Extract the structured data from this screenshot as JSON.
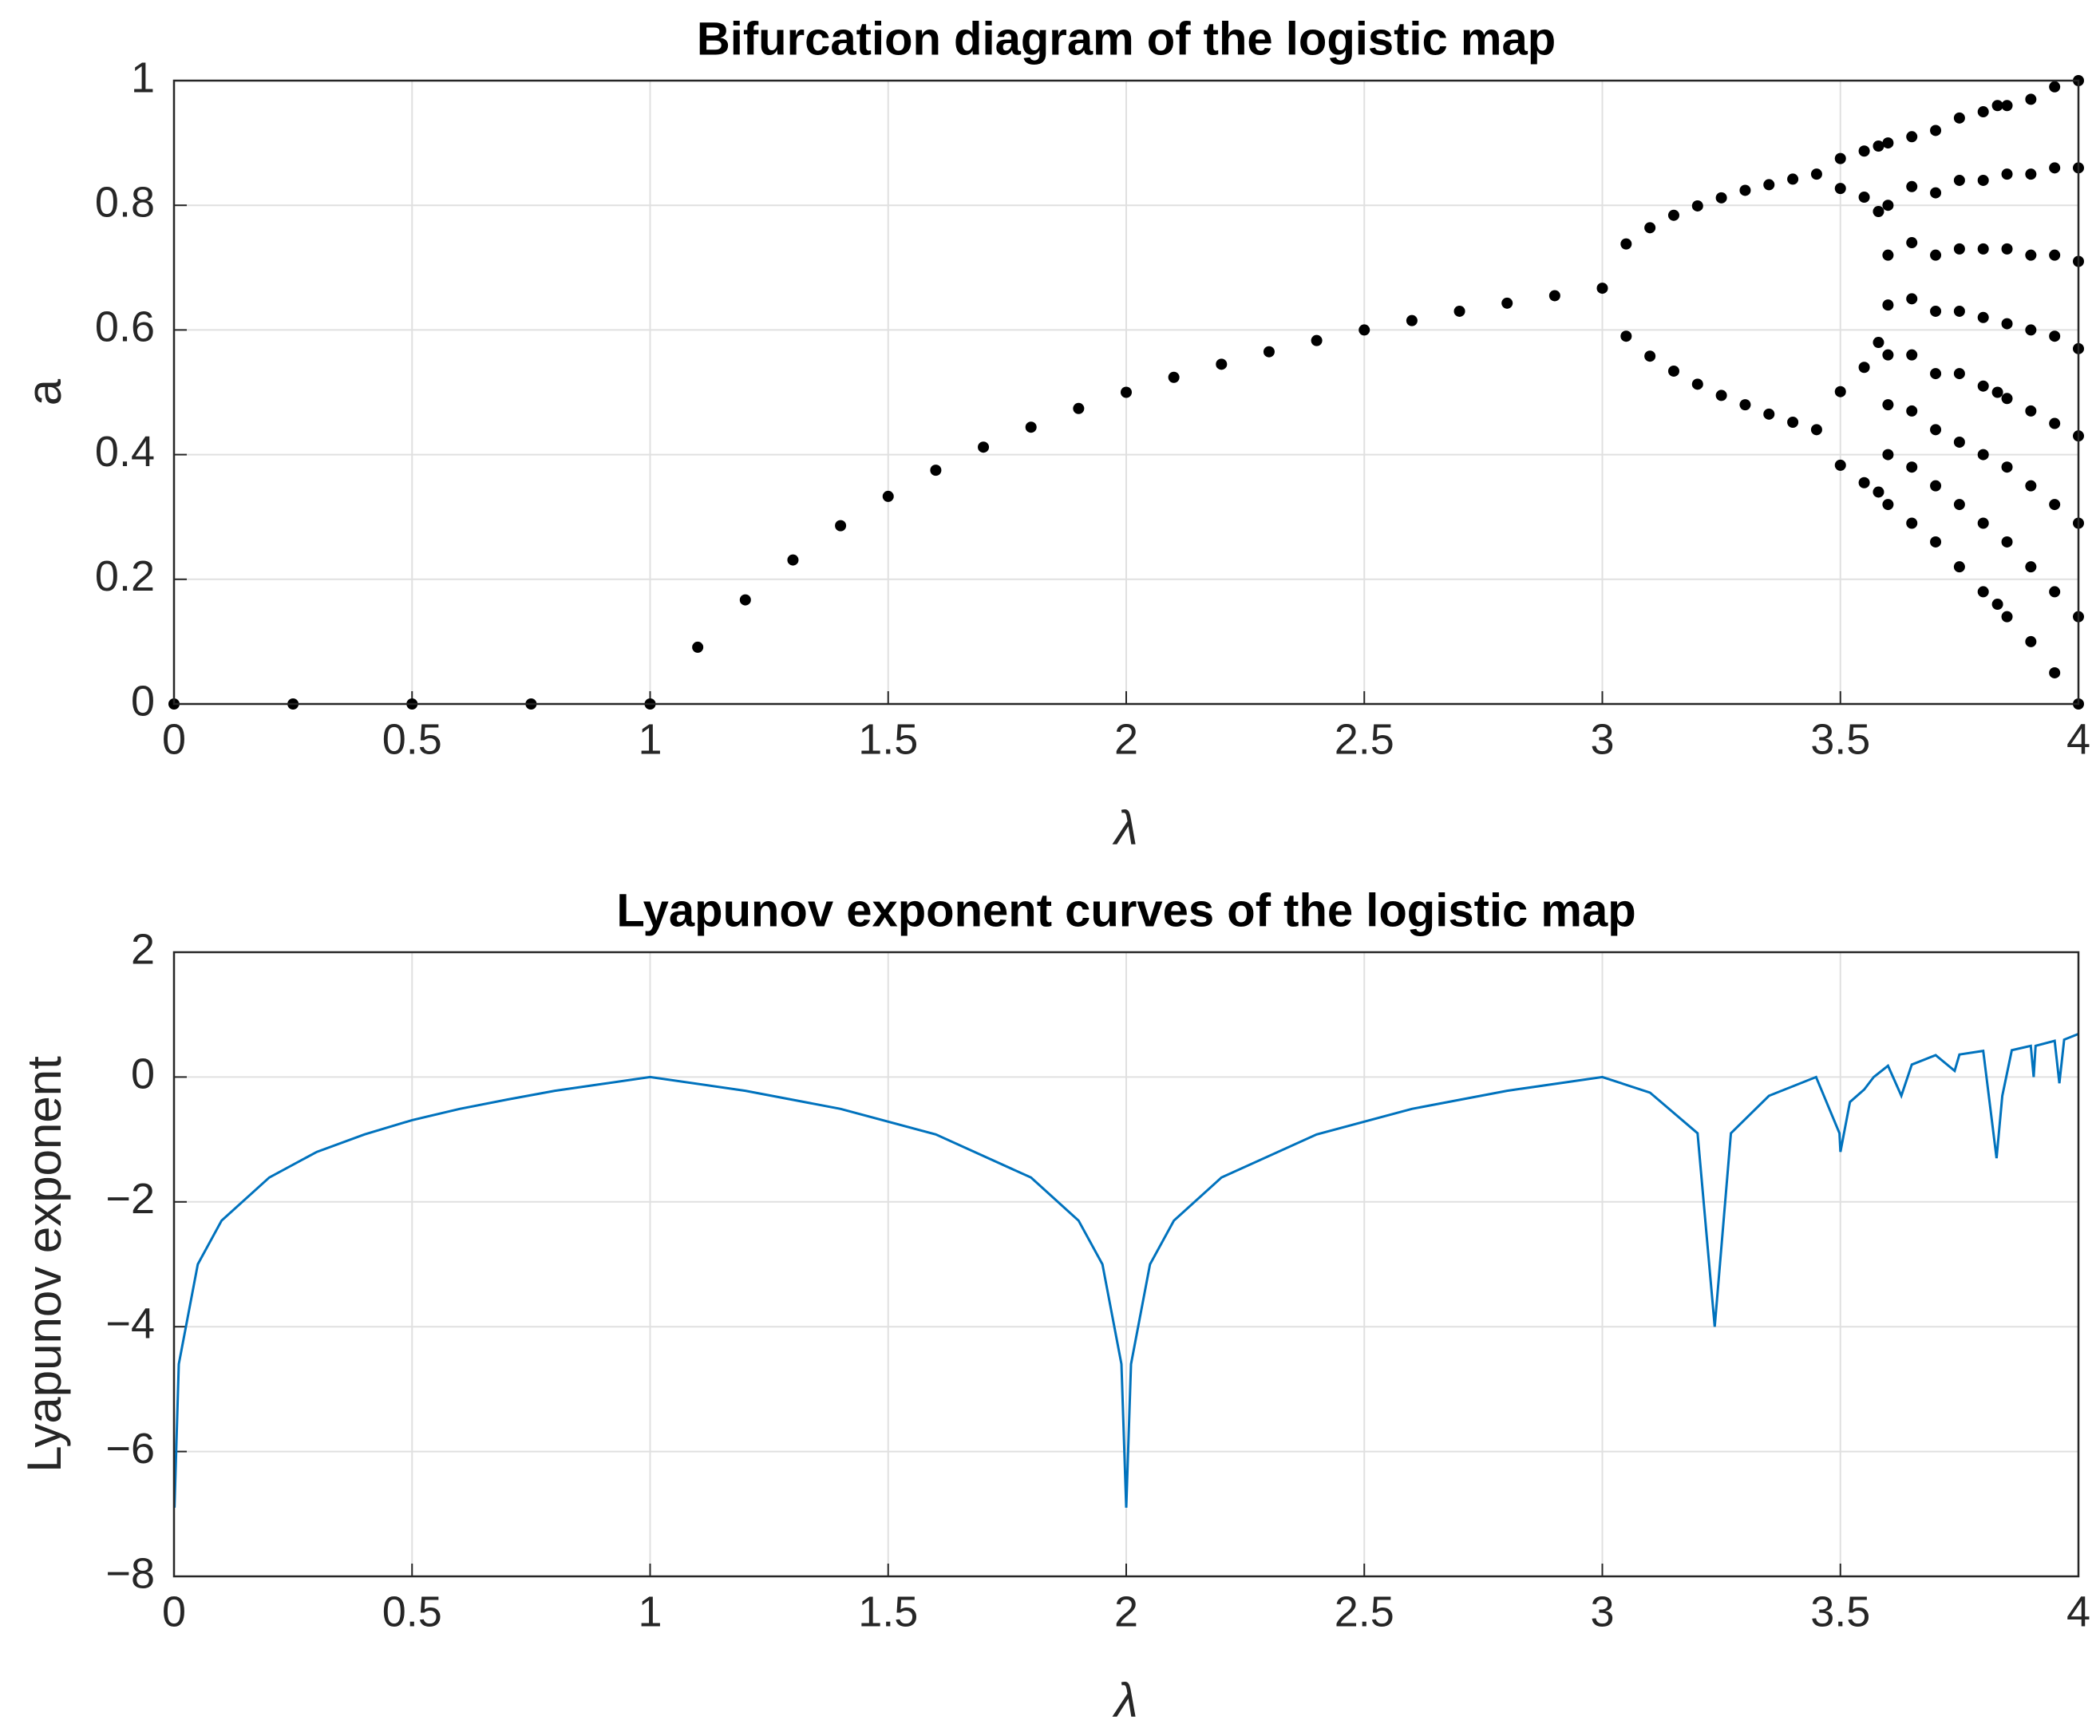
{
  "chart_data": [
    {
      "type": "scatter",
      "title": "Bifurcation diagram of the logistic map",
      "xlabel": "λ",
      "ylabel": "a",
      "color": "#000000",
      "grid": true,
      "xlim": [
        0,
        4
      ],
      "ylim": [
        0,
        1
      ],
      "xticks": [
        0,
        0.5,
        1,
        1.5,
        2,
        2.5,
        3,
        3.5,
        4
      ],
      "yticks": [
        0,
        0.2,
        0.4,
        0.6,
        0.8,
        1
      ],
      "x": [
        0,
        0.25,
        0.5,
        0.75,
        1,
        1.1,
        1.2,
        1.3,
        1.4,
        1.5,
        1.6,
        1.7,
        1.8,
        1.9,
        2,
        2.1,
        2.2,
        2.3,
        2.4,
        2.5,
        2.6,
        2.7,
        2.8,
        2.9,
        3,
        3.05,
        3.1,
        3.15,
        3.2,
        3.25,
        3.3,
        3.35,
        3.4,
        3.45,
        3.5,
        3.55,
        3.58,
        3.6,
        3.65,
        3.7,
        3.75,
        3.8,
        3.83,
        3.85,
        3.9,
        3.95,
        4
      ],
      "values": [
        [
          0
        ],
        [
          0
        ],
        [
          0
        ],
        [
          0
        ],
        [
          0
        ],
        [
          0.091
        ],
        [
          0.167
        ],
        [
          0.231
        ],
        [
          0.286
        ],
        [
          0.333
        ],
        [
          0.375
        ],
        [
          0.412
        ],
        [
          0.444
        ],
        [
          0.474
        ],
        [
          0.5
        ],
        [
          0.524
        ],
        [
          0.545
        ],
        [
          0.565
        ],
        [
          0.583
        ],
        [
          0.6
        ],
        [
          0.615
        ],
        [
          0.63
        ],
        [
          0.643
        ],
        [
          0.655
        ],
        [
          0.667
        ],
        [
          0.738,
          0.59
        ],
        [
          0.764,
          0.558
        ],
        [
          0.784,
          0.534
        ],
        [
          0.799,
          0.513
        ],
        [
          0.812,
          0.495
        ],
        [
          0.824,
          0.48
        ],
        [
          0.833,
          0.465
        ],
        [
          0.842,
          0.452
        ],
        [
          0.85,
          0.44
        ],
        [
          0.875,
          0.383,
          0.827,
          0.501
        ],
        [
          0.887,
          0.355,
          0.813,
          0.54
        ],
        [
          0.895,
          0.34,
          0.79,
          0.58
        ],
        [
          0.32,
          0.4,
          0.48,
          0.56,
          0.64,
          0.72,
          0.8,
          0.9
        ],
        [
          0.29,
          0.38,
          0.47,
          0.56,
          0.65,
          0.74,
          0.83,
          0.91
        ],
        [
          0.26,
          0.35,
          0.44,
          0.53,
          0.63,
          0.72,
          0.82,
          0.92
        ],
        [
          0.22,
          0.32,
          0.42,
          0.53,
          0.63,
          0.73,
          0.84,
          0.94
        ],
        [
          0.18,
          0.29,
          0.4,
          0.51,
          0.62,
          0.73,
          0.84,
          0.95
        ],
        [
          0.96,
          0.16,
          0.5
        ],
        [
          0.14,
          0.26,
          0.38,
          0.49,
          0.61,
          0.73,
          0.85,
          0.96
        ],
        [
          0.1,
          0.22,
          0.35,
          0.47,
          0.6,
          0.72,
          0.85,
          0.97
        ],
        [
          0.05,
          0.18,
          0.32,
          0.45,
          0.59,
          0.72,
          0.86,
          0.99
        ],
        [
          0,
          0.14,
          0.29,
          0.43,
          0.57,
          0.71,
          0.86,
          1
        ]
      ]
    },
    {
      "type": "line",
      "title": "Lyapunov exponent curves of the logistic map",
      "xlabel": "λ",
      "ylabel": "Lyapunov exponent",
      "color": "#0072BD",
      "grid": true,
      "xlim": [
        0,
        4
      ],
      "ylim": [
        -8,
        2
      ],
      "xticks": [
        0,
        0.5,
        1,
        1.5,
        2,
        2.5,
        3,
        3.5,
        4
      ],
      "yticks": [
        {
          "value": -8,
          "label": "−8"
        },
        {
          "value": -6,
          "label": "−6"
        },
        {
          "value": -4,
          "label": "−4"
        },
        {
          "value": -2,
          "label": "−2"
        },
        0,
        2
      ],
      "x": [
        0.001,
        0.01,
        0.05,
        0.1,
        0.2,
        0.3,
        0.4,
        0.5,
        0.6,
        0.7,
        0.8,
        0.9,
        1,
        1.2,
        1.4,
        1.6,
        1.8,
        1.9,
        1.95,
        1.99,
        2,
        2.01,
        2.05,
        2.1,
        2.2,
        2.4,
        2.6,
        2.8,
        3,
        3.1,
        3.2,
        3.236,
        3.27,
        3.35,
        3.449,
        3.498,
        3.5,
        3.52,
        3.55,
        3.57,
        3.6,
        3.628,
        3.65,
        3.7,
        3.74,
        3.75,
        3.8,
        3.828,
        3.84,
        3.86,
        3.9,
        3.906,
        3.91,
        3.95,
        3.96,
        3.97,
        4
      ],
      "values": [
        -6.9,
        -4.6,
        -3,
        -2.3,
        -1.61,
        -1.2,
        -0.92,
        -0.69,
        -0.51,
        -0.36,
        -0.22,
        -0.11,
        0,
        -0.22,
        -0.51,
        -0.92,
        -1.61,
        -2.3,
        -3,
        -4.6,
        -6.9,
        -4.6,
        -3,
        -2.3,
        -1.61,
        -0.92,
        -0.51,
        -0.22,
        0,
        -0.25,
        -0.9,
        -4,
        -0.9,
        -0.3,
        0,
        -0.9,
        -1.2,
        -0.4,
        -0.2,
        0,
        0.18,
        -0.3,
        0.2,
        0.35,
        0.1,
        0.36,
        0.42,
        -1.3,
        -0.3,
        0.43,
        0.5,
        0,
        0.5,
        0.58,
        -0.1,
        0.6,
        0.69
      ]
    }
  ]
}
